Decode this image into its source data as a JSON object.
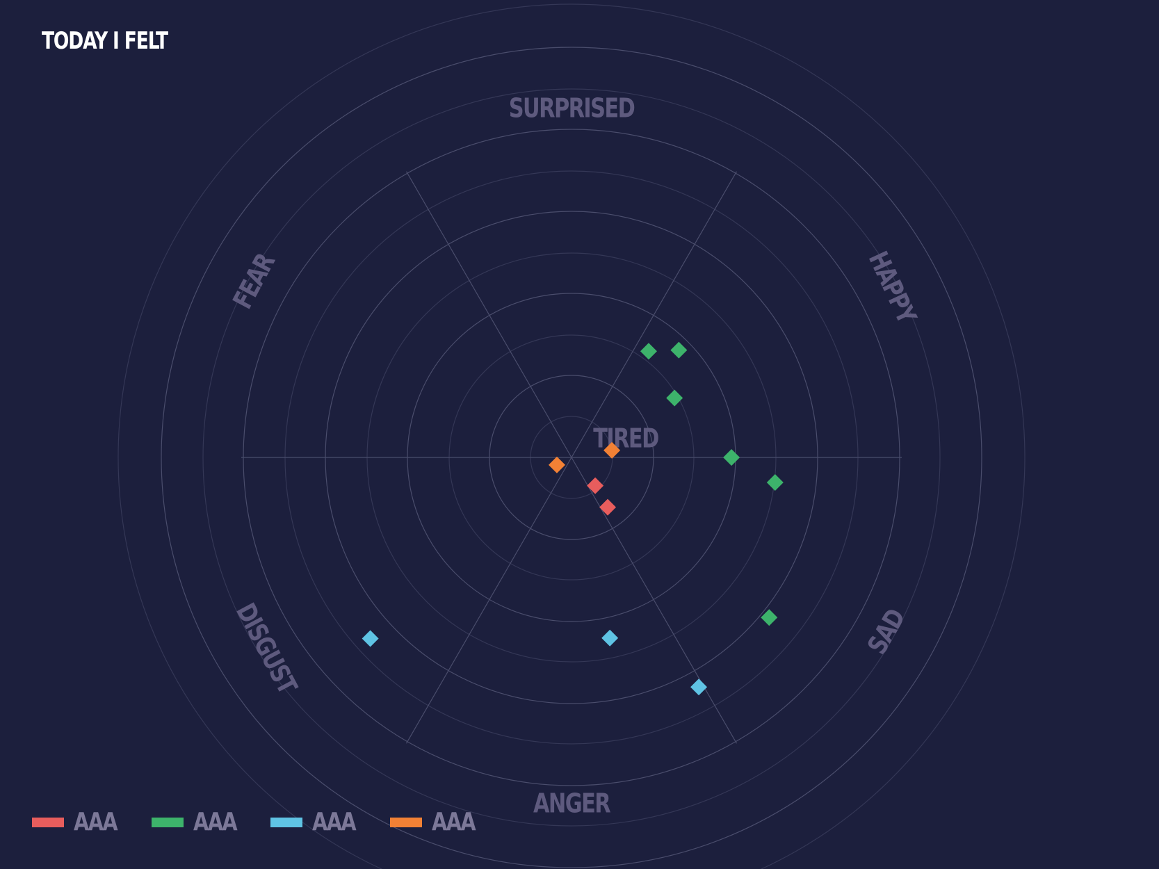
{
  "title": "TODAY I FELT",
  "chart_data": {
    "type": "scatter",
    "coordinate_system": "polar",
    "sectors": [
      "SURPRISED",
      "HAPPY",
      "SAD",
      "ANGER",
      "DISGUST",
      "FEAR"
    ],
    "center_label": "TIRED",
    "grid": true,
    "legend_position": "bottom-left",
    "r_range": [
      0,
      10
    ],
    "series": [
      {
        "name": "AAA",
        "color": "#e85d5d",
        "points": [
          {
            "sector": "SAD",
            "angle_deg": 140,
            "r": 0.9
          },
          {
            "sector": "SAD",
            "angle_deg": 144,
            "r": 1.5
          }
        ]
      },
      {
        "name": "AAA",
        "color": "#3db36b",
        "points": [
          {
            "sector": "HAPPY",
            "angle_deg": 36,
            "r": 3.2
          },
          {
            "sector": "HAPPY",
            "angle_deg": 45,
            "r": 3.7
          },
          {
            "sector": "HAPPY",
            "angle_deg": 60,
            "r": 2.9
          },
          {
            "sector": "HAPPY",
            "angle_deg": 90,
            "r": 3.9
          },
          {
            "sector": "SAD",
            "angle_deg": 97,
            "r": 5.0
          },
          {
            "sector": "SAD",
            "angle_deg": 129,
            "r": 6.2
          }
        ]
      },
      {
        "name": "AAA",
        "color": "#5fc3e4",
        "points": [
          {
            "sector": "DISGUST",
            "angle_deg": 228,
            "r": 6.6
          },
          {
            "sector": "ANGER",
            "angle_deg": 168,
            "r": 4.5
          },
          {
            "sector": "SAD",
            "angle_deg": 151,
            "r": 6.4
          }
        ]
      },
      {
        "name": "AAA",
        "color": "#f28135",
        "points": [
          {
            "sector": "TIRED",
            "angle_deg": 243,
            "r": 0.4
          },
          {
            "sector": "TIRED",
            "angle_deg": 80,
            "r": 1.0
          }
        ]
      }
    ]
  }
}
